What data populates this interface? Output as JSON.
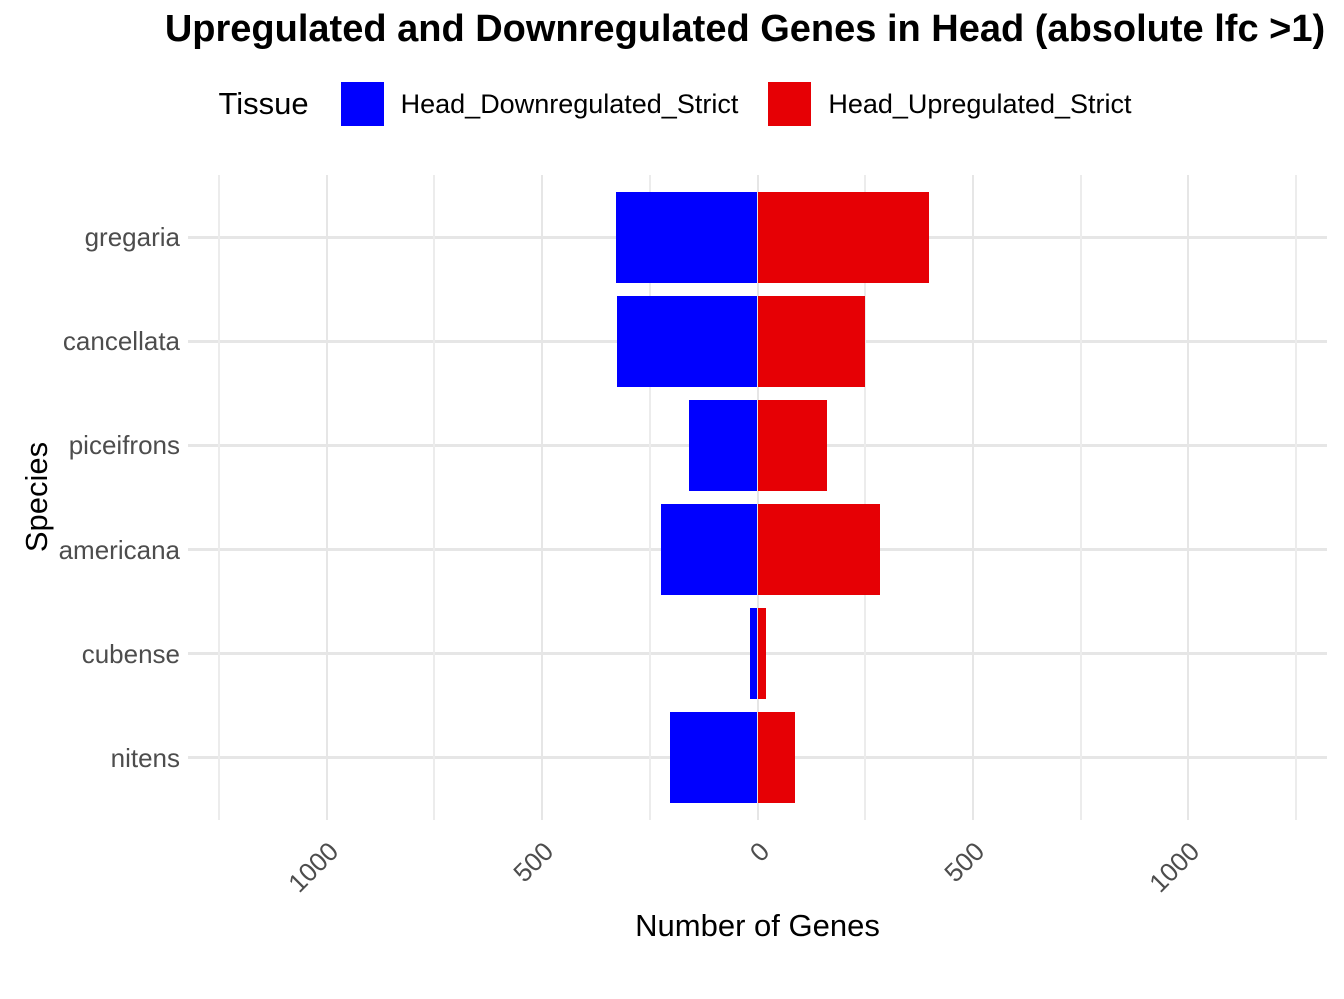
{
  "title": "Upregulated and Downregulated Genes in Head (absolute lfc >1)",
  "legend": {
    "title": "Tissue",
    "items": [
      {
        "label": "Head_Downregulated_Strict",
        "color": "#0000FF"
      },
      {
        "label": "Head_Upregulated_Strict",
        "color": "#E60005"
      }
    ]
  },
  "chart_data": {
    "type": "bar",
    "orientation": "horizontal-diverging",
    "title": "Upregulated and Downregulated Genes in Head (absolute lfc >1)",
    "xlabel": "Number of Genes",
    "ylabel": "Species",
    "categories": [
      "gregaria",
      "cancellata",
      "piceifrons",
      "americana",
      "cubense",
      "nitens"
    ],
    "series": [
      {
        "name": "Head_Downregulated_Strict",
        "color": "#0000FF",
        "values": [
          -328,
          -326,
          -159,
          -224,
          -17,
          -204
        ]
      },
      {
        "name": "Head_Upregulated_Strict",
        "color": "#E60005",
        "values": [
          399,
          250,
          161,
          284,
          20,
          88
        ]
      }
    ],
    "x_ticks": [
      -1000,
      -500,
      0,
      500,
      1000
    ],
    "x_tick_labels": [
      "1000",
      "500",
      "0",
      "500",
      "1000"
    ],
    "x_minor_ticks": [
      -1250,
      -750,
      -250,
      250,
      750,
      1250
    ],
    "xlim": [
      -1322,
      1322
    ],
    "grid": true,
    "legend_position": "top",
    "gridline_color": "#E6E6E6",
    "tick_label_color": "#4D4D4D"
  }
}
